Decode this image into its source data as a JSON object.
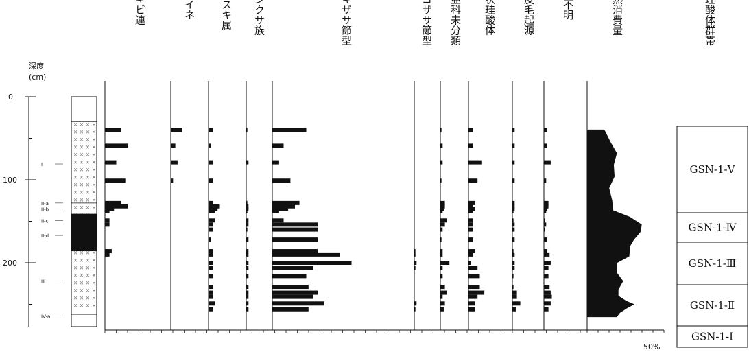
{
  "chart_data": {
    "type": "bar",
    "orientation": "horizontal",
    "depth_axis": {
      "label": "深度",
      "unit": "(cm)",
      "ticks": [
        0,
        100,
        200
      ]
    },
    "scale_label": "50%",
    "column_titles": [
      "キビ連",
      "イネ",
      "ススキ属",
      "ウシクサ族",
      "チマキザサ節型",
      "ミヤコザサ節型",
      "タケ亜科未分類",
      "棒状珪酸体",
      "表皮毛起源",
      "不明",
      "灼熱消費量"
    ],
    "zone_header": "植物珪酸体群帯",
    "zones": [
      {
        "label": "GSN-1-Ⅴ",
        "top": 40,
        "bottom": 130
      },
      {
        "label": "GSN-1-Ⅳ",
        "top": 130,
        "bottom": 152
      },
      {
        "label": "GSN-1-Ⅲ",
        "top": 152,
        "bottom": 196
      },
      {
        "label": "GSN-1-Ⅱ",
        "top": 196,
        "bottom": 247
      },
      {
        "label": "GSN-1-Ⅰ",
        "top": 247,
        "bottom": 270
      }
    ],
    "strat_labels": [
      {
        "label": "I",
        "depth": 81
      },
      {
        "label": "II-a",
        "depth": 128
      },
      {
        "label": "II-b",
        "depth": 135
      },
      {
        "label": "II-c",
        "depth": 149
      },
      {
        "label": "II-d",
        "depth": 167
      },
      {
        "label": "III",
        "depth": 222
      },
      {
        "label": "IV-a",
        "depth": 264
      }
    ],
    "depths": [
      40,
      59,
      79,
      101,
      128,
      132,
      135,
      138,
      149,
      154,
      160,
      172,
      186,
      190,
      200,
      206,
      216,
      229,
      236,
      241,
      249,
      256
    ],
    "series": [
      {
        "name": "キビ連",
        "values": [
          7,
          10,
          5,
          9,
          7,
          10,
          4,
          2,
          2,
          2,
          0,
          0,
          3,
          2,
          0,
          0,
          0,
          0,
          0,
          0,
          0,
          0
        ]
      },
      {
        "name": "イネ",
        "values": [
          5,
          2,
          3,
          1,
          0,
          0,
          0,
          0,
          0,
          0,
          0,
          0,
          0,
          0,
          0,
          0,
          0,
          0,
          0,
          0,
          0,
          0
        ]
      },
      {
        "name": "ススキ属",
        "values": [
          2,
          1,
          2,
          2,
          2,
          5,
          4,
          3,
          3,
          2,
          2,
          1,
          2,
          2,
          2,
          2,
          2,
          2,
          2,
          2,
          3,
          2
        ]
      },
      {
        "name": "ウシクサ族",
        "values": [
          0.5,
          0,
          1,
          0,
          0.5,
          1,
          1,
          0.5,
          1,
          1,
          0.5,
          1,
          1,
          1,
          1,
          1,
          1,
          1,
          1,
          1,
          1,
          1
        ]
      },
      {
        "name": "チマキザサ節型",
        "values": [
          15,
          5,
          3,
          8,
          12,
          10,
          7,
          3,
          5,
          20,
          20,
          20,
          20,
          30,
          35,
          18,
          15,
          16,
          20,
          18,
          23,
          16
        ]
      },
      {
        "name": "ミヤコザサ節型",
        "values": [
          0,
          0,
          0,
          0,
          0,
          0,
          0,
          0,
          0,
          0,
          0,
          0,
          0.5,
          0.5,
          1,
          0.5,
          0,
          0,
          0,
          0,
          1,
          0.5
        ]
      },
      {
        "name": "タケ亜科未分類",
        "values": [
          0.5,
          1,
          1,
          0.5,
          2,
          2,
          1.5,
          1,
          3,
          2,
          1,
          0.5,
          1,
          1,
          4,
          1,
          1,
          2,
          3,
          1,
          2,
          1.5
        ]
      },
      {
        "name": "棒状珪酸体",
        "values": [
          2,
          2,
          6,
          4,
          3,
          2,
          3,
          2,
          2,
          2,
          2,
          2,
          3,
          2,
          1,
          4,
          5,
          5,
          7,
          4,
          3,
          3
        ]
      },
      {
        "name": "表皮毛起源",
        "values": [
          1,
          1,
          1,
          1,
          1,
          1,
          1,
          0.5,
          0.5,
          1,
          1,
          1,
          0.5,
          1,
          1,
          1,
          0.5,
          0.5,
          2,
          2,
          3.5,
          1.5
        ]
      },
      {
        "name": "不明",
        "values": [
          1.5,
          1.5,
          3,
          1,
          2,
          2,
          1.5,
          1,
          0.5,
          1,
          0.5,
          1.5,
          1.5,
          2.5,
          3,
          2,
          2,
          2.5,
          3,
          3.5,
          3,
          2
        ]
      }
    ],
    "loss_on_ignition": {
      "name": "灼熱消費量",
      "depths": [
        40,
        55,
        68,
        82,
        96,
        110,
        125,
        137,
        145,
        154,
        162,
        172,
        180,
        192,
        200,
        212,
        222,
        232,
        240,
        246,
        250,
        254,
        260,
        265
      ],
      "values": [
        22,
        30,
        38,
        34,
        35,
        28,
        32,
        33,
        55,
        70,
        69,
        60,
        55,
        54,
        38,
        38,
        46,
        40,
        40,
        50,
        60,
        52,
        42,
        38
      ]
    }
  }
}
